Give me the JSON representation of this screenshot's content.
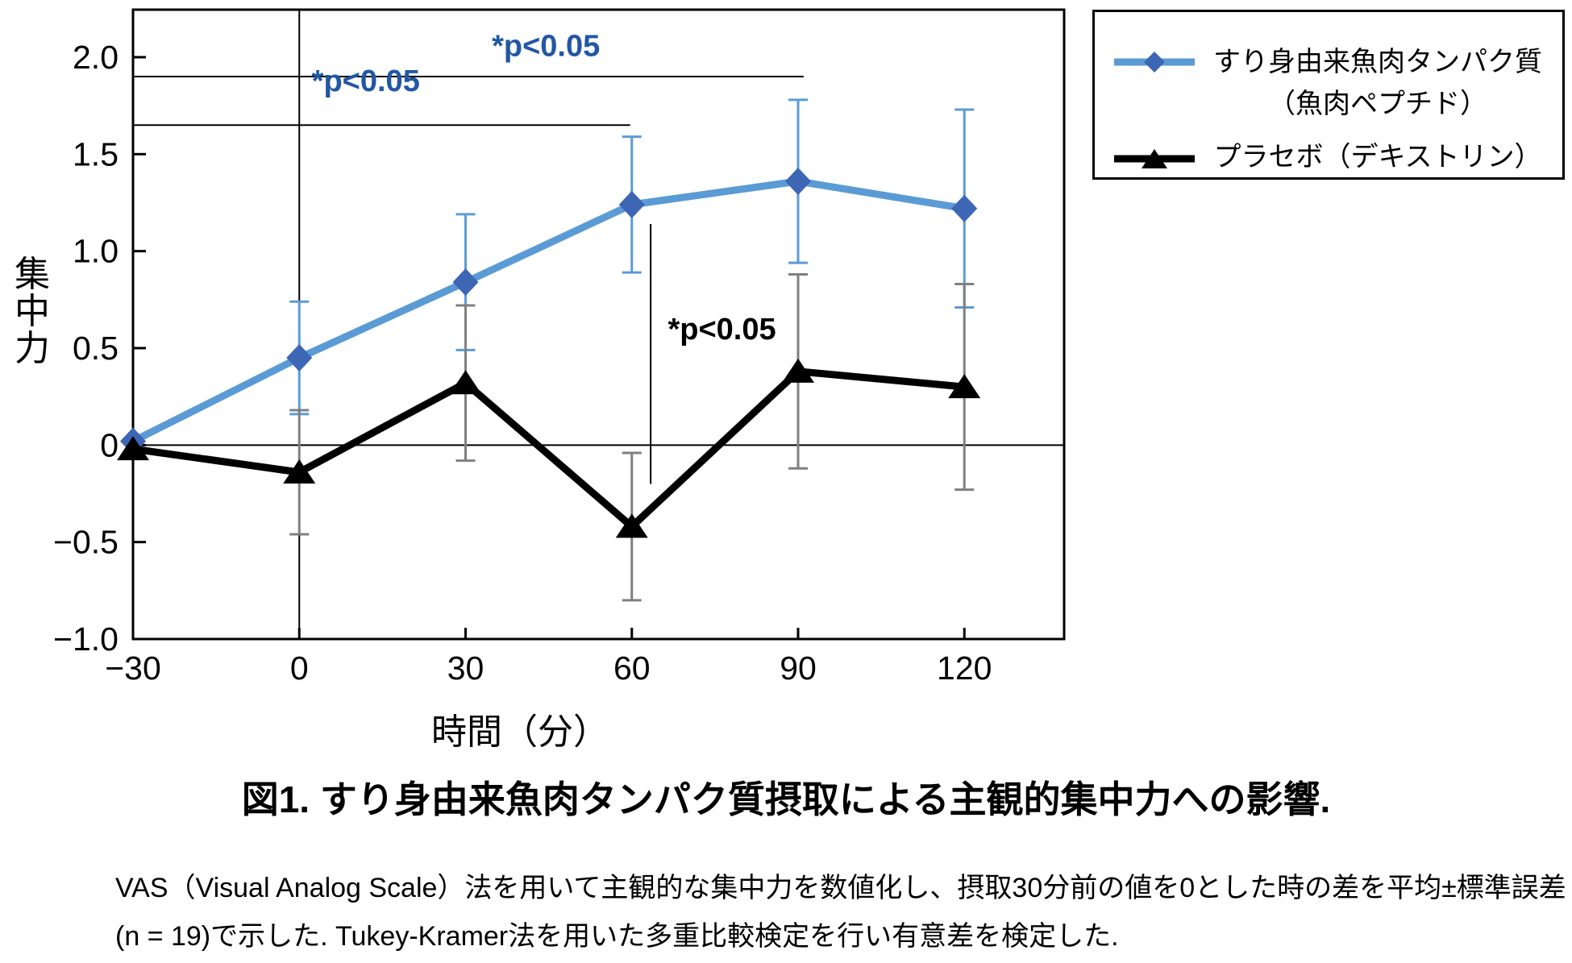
{
  "figure": {
    "title": "図1. すり身由来魚肉タンパク質摂取による主観的集中力への影響.",
    "caption_line1": "VAS（Visual Analog Scale）法を用いて主観的な集中力を数値化し、摂取30分前の値を0とした時の差を平均±標準誤差",
    "caption_line2": "(n = 19)で示した. Tukey-Kramer法を用いた多重比較検定を行い有意差を検定した."
  },
  "legend": {
    "items": [
      {
        "line1": "すり身由来魚肉タンパク質",
        "line2": "（魚肉ペプチド）",
        "marker": "diamond"
      },
      {
        "line1": "プラセボ（デキストリン）",
        "line2": "",
        "marker": "triangle"
      }
    ]
  },
  "chart_data": {
    "type": "line",
    "title": "",
    "xlabel": "時間（分）",
    "ylabel": "集中力",
    "x": [
      -30,
      0,
      30,
      60,
      90,
      120
    ],
    "x_tick_labels": [
      "−30",
      "0",
      "30",
      "60",
      "90",
      "120"
    ],
    "y_ticks": [
      2.0,
      1.5,
      1.0,
      0.5,
      0,
      -0.5,
      -1.0
    ],
    "y_tick_labels": [
      "2.0",
      "1.5",
      "1.0",
      "0.5",
      "0",
      "−0.5",
      "−1.0"
    ],
    "xlim": [
      -30,
      138
    ],
    "ylim": [
      -1.0,
      2.245
    ],
    "grid": false,
    "zero_baseline": true,
    "zero_vertical_line": true,
    "legend_position": "outside-top-right",
    "series": [
      {
        "name": "すり身由来魚肉タンパク質（魚肉ペプチド）",
        "marker": "diamond",
        "line_color": "#5B9BD5",
        "marker_color": "#3D66B5",
        "error_color": "#5B9BD5",
        "values": [
          0.02,
          0.45,
          0.84,
          1.24,
          1.36,
          1.22
        ],
        "se": [
          0,
          0.29,
          0.35,
          0.35,
          0.42,
          0.51
        ]
      },
      {
        "name": "プラセボ（デキストリン）",
        "marker": "triangle",
        "line_color": "#000000",
        "marker_color": "#000000",
        "error_color": "#808080",
        "values": [
          -0.02,
          -0.14,
          0.32,
          -0.42,
          0.38,
          0.3
        ],
        "se": [
          0,
          0.32,
          0.4,
          0.38,
          0.5,
          0.53
        ]
      }
    ],
    "annotations": [
      {
        "kind": "hline",
        "y": 1.9,
        "x1": -30,
        "x2": 91,
        "label": "*p<0.05",
        "label_color": "#2157A4",
        "label_x": 44.5,
        "label_y": 2.06,
        "anchor": "middle"
      },
      {
        "kind": "hline",
        "y": 1.65,
        "x1": -30,
        "x2": 59.7,
        "label": "*p<0.05",
        "label_color": "#2157A4",
        "label_x": 12,
        "label_y": 1.88,
        "anchor": "middle"
      },
      {
        "kind": "vline",
        "x": 63.4,
        "y1": -0.2,
        "y2": 1.14,
        "label": "*p<0.05",
        "label_color": "#000000",
        "label_x": 66.5,
        "label_y": 0.6,
        "anchor": "start"
      }
    ]
  }
}
